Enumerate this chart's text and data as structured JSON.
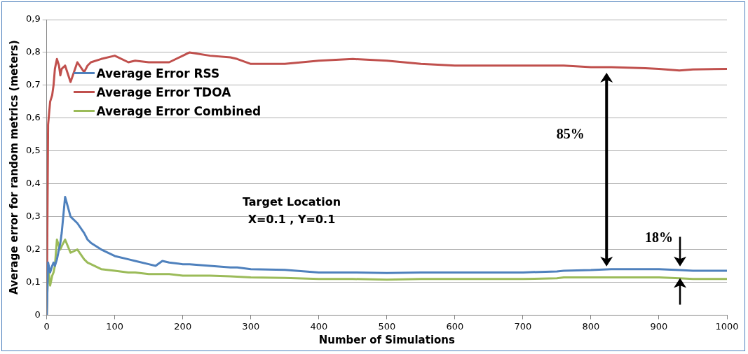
{
  "chart_data": {
    "type": "line",
    "xlabel": "Number of Simulations",
    "ylabel": "Average error for random metrics (meters)",
    "xlim": [
      0,
      1000
    ],
    "xticks": [
      0,
      100,
      200,
      300,
      400,
      500,
      600,
      700,
      800,
      900,
      1000
    ],
    "ylim": [
      0,
      0.9
    ],
    "yticks": [
      0,
      {
        "value": 0.1,
        "label": "0,1"
      },
      {
        "value": 0.2,
        "label": "0,2"
      },
      {
        "value": 0.3,
        "label": "0,3"
      },
      {
        "value": 0.4,
        "label": "0,4"
      },
      {
        "value": 0.5,
        "label": "0,5"
      },
      {
        "value": 0.6,
        "label": "0,6"
      },
      {
        "value": 0.7,
        "label": "0,7"
      },
      {
        "value": 0.8,
        "label": "0,8"
      },
      {
        "value": 0.9,
        "label": "0,9"
      }
    ],
    "grid": "y",
    "legend": "top left",
    "marker": "none",
    "line_style": "solid",
    "x": [
      0,
      2,
      5,
      8,
      10,
      12,
      15,
      18,
      20,
      22,
      27,
      35,
      45,
      55,
      60,
      65,
      80,
      100,
      120,
      130,
      150,
      160,
      170,
      180,
      200,
      210,
      240,
      270,
      280,
      300,
      350,
      400,
      450,
      500,
      550,
      600,
      700,
      750,
      760,
      800,
      830,
      880,
      900,
      930,
      950,
      1000
    ],
    "series": [
      {
        "name": "Average Error RSS",
        "color": "#4f81bd",
        "values": [
          0,
          0.16,
          0.13,
          0.15,
          0.16,
          0.15,
          0.17,
          0.2,
          0.22,
          0.25,
          0.36,
          0.3,
          0.28,
          0.25,
          0.23,
          0.22,
          0.2,
          0.18,
          0.17,
          0.165,
          0.155,
          0.15,
          0.165,
          0.16,
          0.155,
          0.155,
          0.15,
          0.145,
          0.145,
          0.14,
          0.138,
          0.13,
          0.13,
          0.128,
          0.13,
          0.13,
          0.13,
          0.133,
          0.135,
          0.137,
          0.14,
          0.14,
          0.14,
          0.137,
          0.135,
          0.135
        ]
      },
      {
        "name": "Average Error TDOA",
        "color": "#c0504d",
        "values": [
          0,
          0.58,
          0.65,
          0.67,
          0.7,
          0.75,
          0.78,
          0.76,
          0.73,
          0.75,
          0.76,
          0.71,
          0.77,
          0.74,
          0.76,
          0.77,
          0.78,
          0.79,
          0.77,
          0.775,
          0.77,
          0.77,
          0.77,
          0.77,
          0.79,
          0.8,
          0.79,
          0.785,
          0.78,
          0.765,
          0.765,
          0.775,
          0.78,
          0.775,
          0.765,
          0.76,
          0.76,
          0.76,
          0.76,
          0.755,
          0.755,
          0.752,
          0.75,
          0.745,
          0.748,
          0.75
        ]
      },
      {
        "name": "Average Error Combined",
        "color": "#9bbb59",
        "values": [
          0,
          0.15,
          0.09,
          0.12,
          0.13,
          0.15,
          0.23,
          0.21,
          0.2,
          0.21,
          0.23,
          0.19,
          0.2,
          0.17,
          0.16,
          0.155,
          0.14,
          0.135,
          0.13,
          0.13,
          0.125,
          0.125,
          0.125,
          0.125,
          0.12,
          0.12,
          0.12,
          0.118,
          0.117,
          0.115,
          0.113,
          0.11,
          0.11,
          0.108,
          0.11,
          0.11,
          0.11,
          0.112,
          0.115,
          0.115,
          0.115,
          0.115,
          0.115,
          0.112,
          0.11,
          0.11
        ]
      }
    ],
    "annotations": [
      "Target Location",
      "X=0.1 , Y=0.1",
      "85%",
      "18%"
    ]
  }
}
